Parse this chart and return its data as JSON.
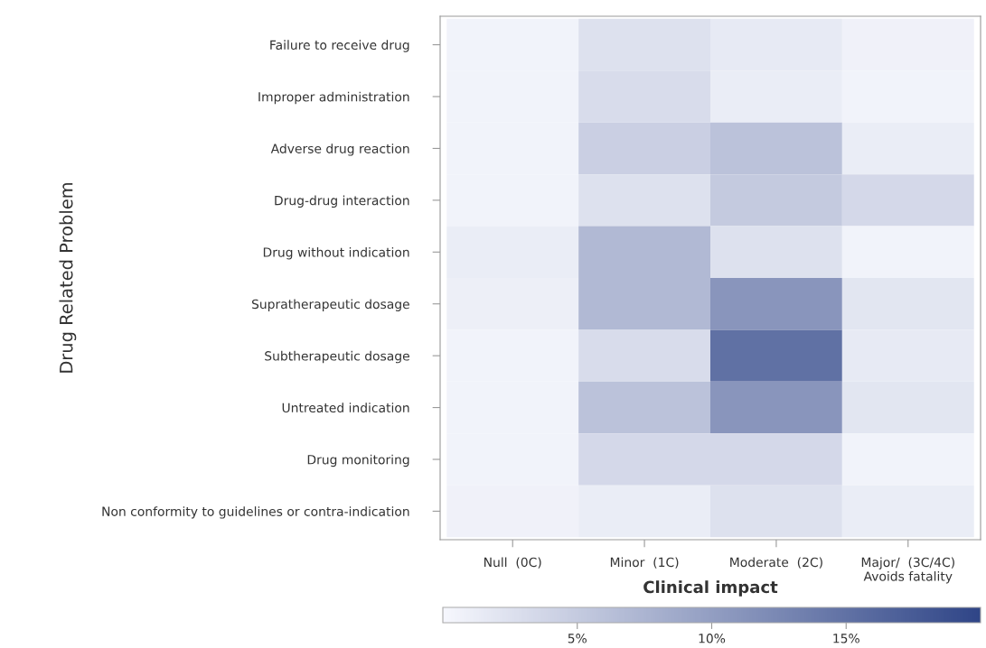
{
  "chart_data": {
    "type": "heatmap",
    "xlabel": "Clinical impact",
    "ylabel": "Drug Related Problem",
    "categories": [
      "Null  (0C)",
      "Minor  (1C)",
      "Moderate  (2C)",
      "Major/  (3C/4C)\nAvoids fatality"
    ],
    "y_categories": [
      "Failure to receive drug",
      "Improper administration",
      "Adverse drug reaction",
      "Drug-drug interaction",
      "Drug without indication",
      "Supratherapeutic dosage",
      "Subtherapeutic dosage",
      "Untreated indication",
      "Drug monitoring",
      "Non conformity to guidelines or contra-indication"
    ],
    "cells": [
      [
        0.5,
        2.5,
        1.5,
        0.7
      ],
      [
        0.5,
        3,
        1.2,
        0.5
      ],
      [
        0.5,
        4.5,
        6,
        1.2
      ],
      [
        0.5,
        2.5,
        5,
        3.5
      ],
      [
        1.2,
        7,
        2.5,
        0.5
      ],
      [
        1,
        7,
        11,
        2
      ],
      [
        0.5,
        3,
        15,
        1.5
      ],
      [
        0.5,
        6,
        11,
        2
      ],
      [
        0.5,
        3.5,
        3.5,
        0.5
      ],
      [
        0.7,
        1.2,
        2.5,
        1.2
      ]
    ],
    "clim": [
      0,
      20
    ],
    "cticks": [
      {
        "value": 5,
        "label": "5%"
      },
      {
        "value": 10,
        "label": "10%"
      },
      {
        "value": 15,
        "label": "15%"
      }
    ]
  }
}
